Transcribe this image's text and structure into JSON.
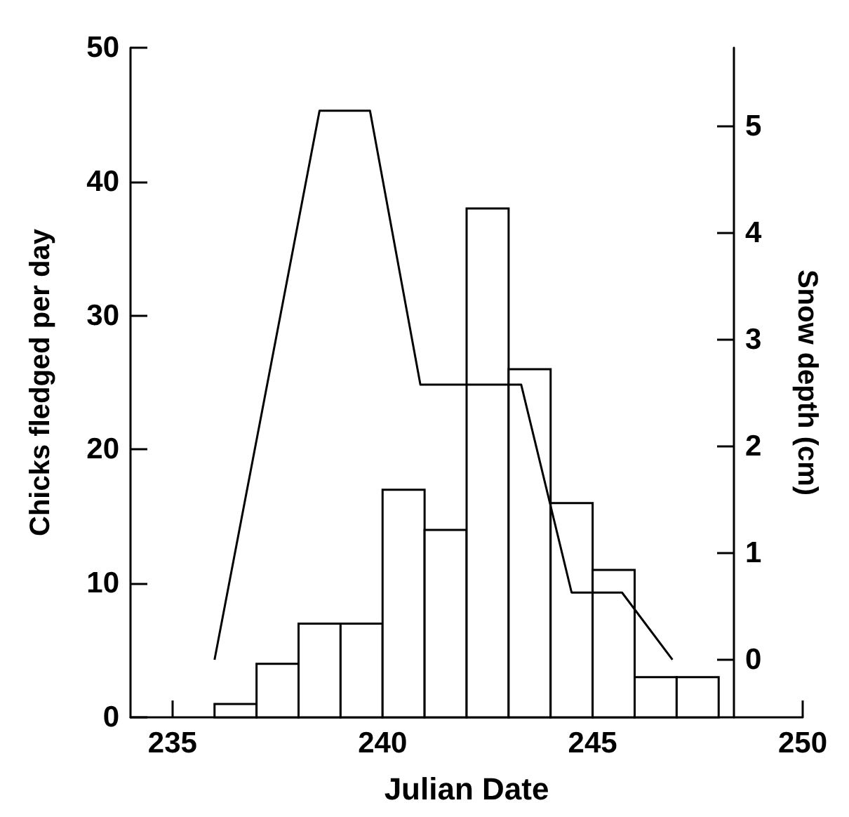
{
  "chart_data": {
    "type": "histogram",
    "xlabel": "Julian Date",
    "ylabel": "Chicks fledged per day",
    "y2label": "Snow depth (cm)",
    "bins": [
      236,
      237,
      238,
      239,
      240,
      241,
      242,
      243,
      244,
      245,
      246,
      247,
      248
    ],
    "values": [
      1,
      4,
      7,
      7,
      17,
      14,
      38,
      26,
      16,
      11,
      3,
      3
    ],
    "color": "#ffffff",
    "series": [
      {
        "type": "line",
        "axis": "y2",
        "color": "#000000",
        "x": [
          236,
          238.5,
          239.7,
          240.9,
          243.3,
          244.5,
          245.7,
          246.9
        ],
        "values": [
          0,
          5.15,
          5.15,
          2.58,
          2.58,
          0.63,
          0.63,
          0
        ]
      }
    ],
    "xlim": [
      234,
      250
    ],
    "xticks": [
      235,
      240,
      245,
      250
    ],
    "ylim": [
      0,
      50
    ],
    "yticks": [
      0,
      10,
      20,
      30,
      40,
      50
    ],
    "y2lim": [
      -0.54,
      5.74
    ],
    "y2ticks": [
      0,
      1,
      2,
      3,
      4,
      5
    ],
    "grid": false
  }
}
